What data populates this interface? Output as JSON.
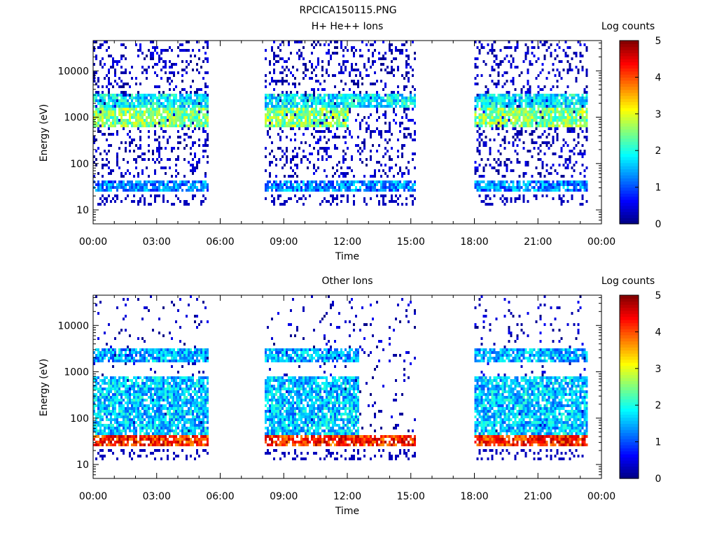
{
  "figure_title": "RPCICA150115.PNG",
  "colorbar": {
    "label": "Log counts",
    "ticks": [
      "0",
      "1",
      "2",
      "3",
      "4",
      "5"
    ]
  },
  "colors": {
    "background": "#ffffff",
    "axis": "#000000",
    "colormap": [
      "#00007f",
      "#0000ff",
      "#0080ff",
      "#00ffff",
      "#80ff80",
      "#ffff00",
      "#ff8000",
      "#ff0000",
      "#7f0000"
    ]
  },
  "chart_data": [
    {
      "type": "heatmap",
      "title": "H+ He++ Ions",
      "xlabel": "Time",
      "ylabel": "Energy (eV)",
      "x_ticks": [
        "00:00",
        "03:00",
        "06:00",
        "09:00",
        "12:00",
        "15:00",
        "18:00",
        "21:00",
        "00:00"
      ],
      "y_ticks": [
        "10",
        "100",
        "1000",
        "10000"
      ],
      "y_scale": "log",
      "ylim": [
        5,
        45000
      ],
      "xlim_hours": [
        0,
        24
      ],
      "zlim": [
        0,
        5
      ],
      "colorbar_label": "Log counts",
      "data_intervals_hours": [
        [
          0.0,
          5.4
        ],
        [
          8.1,
          15.2
        ],
        [
          18.0,
          23.3
        ]
      ],
      "bands": [
        {
          "energy_eV": [
            25,
            45
          ],
          "log_counts": 1.3,
          "intervals": [
            [
              0.0,
              5.4
            ],
            [
              8.1,
              15.2
            ],
            [
              18.0,
              23.3
            ]
          ]
        },
        {
          "energy_eV": [
            600,
            1500
          ],
          "log_counts": 2.5,
          "intervals": [
            [
              0.0,
              5.4
            ],
            [
              8.1,
              12.0
            ],
            [
              18.0,
              23.3
            ]
          ]
        },
        {
          "energy_eV": [
            1600,
            3000
          ],
          "log_counts": 1.8,
          "intervals": [
            [
              0.0,
              5.4
            ],
            [
              8.1,
              15.2
            ],
            [
              18.0,
              23.3
            ]
          ]
        }
      ]
    },
    {
      "type": "heatmap",
      "title": "Other Ions",
      "xlabel": "Time",
      "ylabel": "Energy (eV)",
      "x_ticks": [
        "00:00",
        "03:00",
        "06:00",
        "09:00",
        "12:00",
        "15:00",
        "18:00",
        "21:00",
        "00:00"
      ],
      "y_ticks": [
        "10",
        "100",
        "1000",
        "10000"
      ],
      "y_scale": "log",
      "ylim": [
        5,
        45000
      ],
      "xlim_hours": [
        0,
        24
      ],
      "zlim": [
        0,
        5
      ],
      "colorbar_label": "Log counts",
      "data_intervals_hours": [
        [
          0.0,
          5.4
        ],
        [
          8.1,
          15.2
        ],
        [
          18.0,
          23.3
        ]
      ],
      "bands": [
        {
          "energy_eV": [
            25,
            45
          ],
          "log_counts": 4.2,
          "intervals": [
            [
              0.0,
              5.4
            ],
            [
              8.1,
              15.2
            ],
            [
              18.0,
              23.3
            ]
          ]
        },
        {
          "energy_eV": [
            45,
            800
          ],
          "log_counts": 1.6,
          "intervals": [
            [
              0.0,
              5.4
            ],
            [
              8.1,
              12.5
            ],
            [
              18.0,
              23.3
            ]
          ]
        },
        {
          "energy_eV": [
            1600,
            3000
          ],
          "log_counts": 1.5,
          "intervals": [
            [
              0.0,
              5.4
            ],
            [
              8.1,
              12.5
            ],
            [
              18.0,
              23.3
            ]
          ]
        }
      ]
    }
  ]
}
